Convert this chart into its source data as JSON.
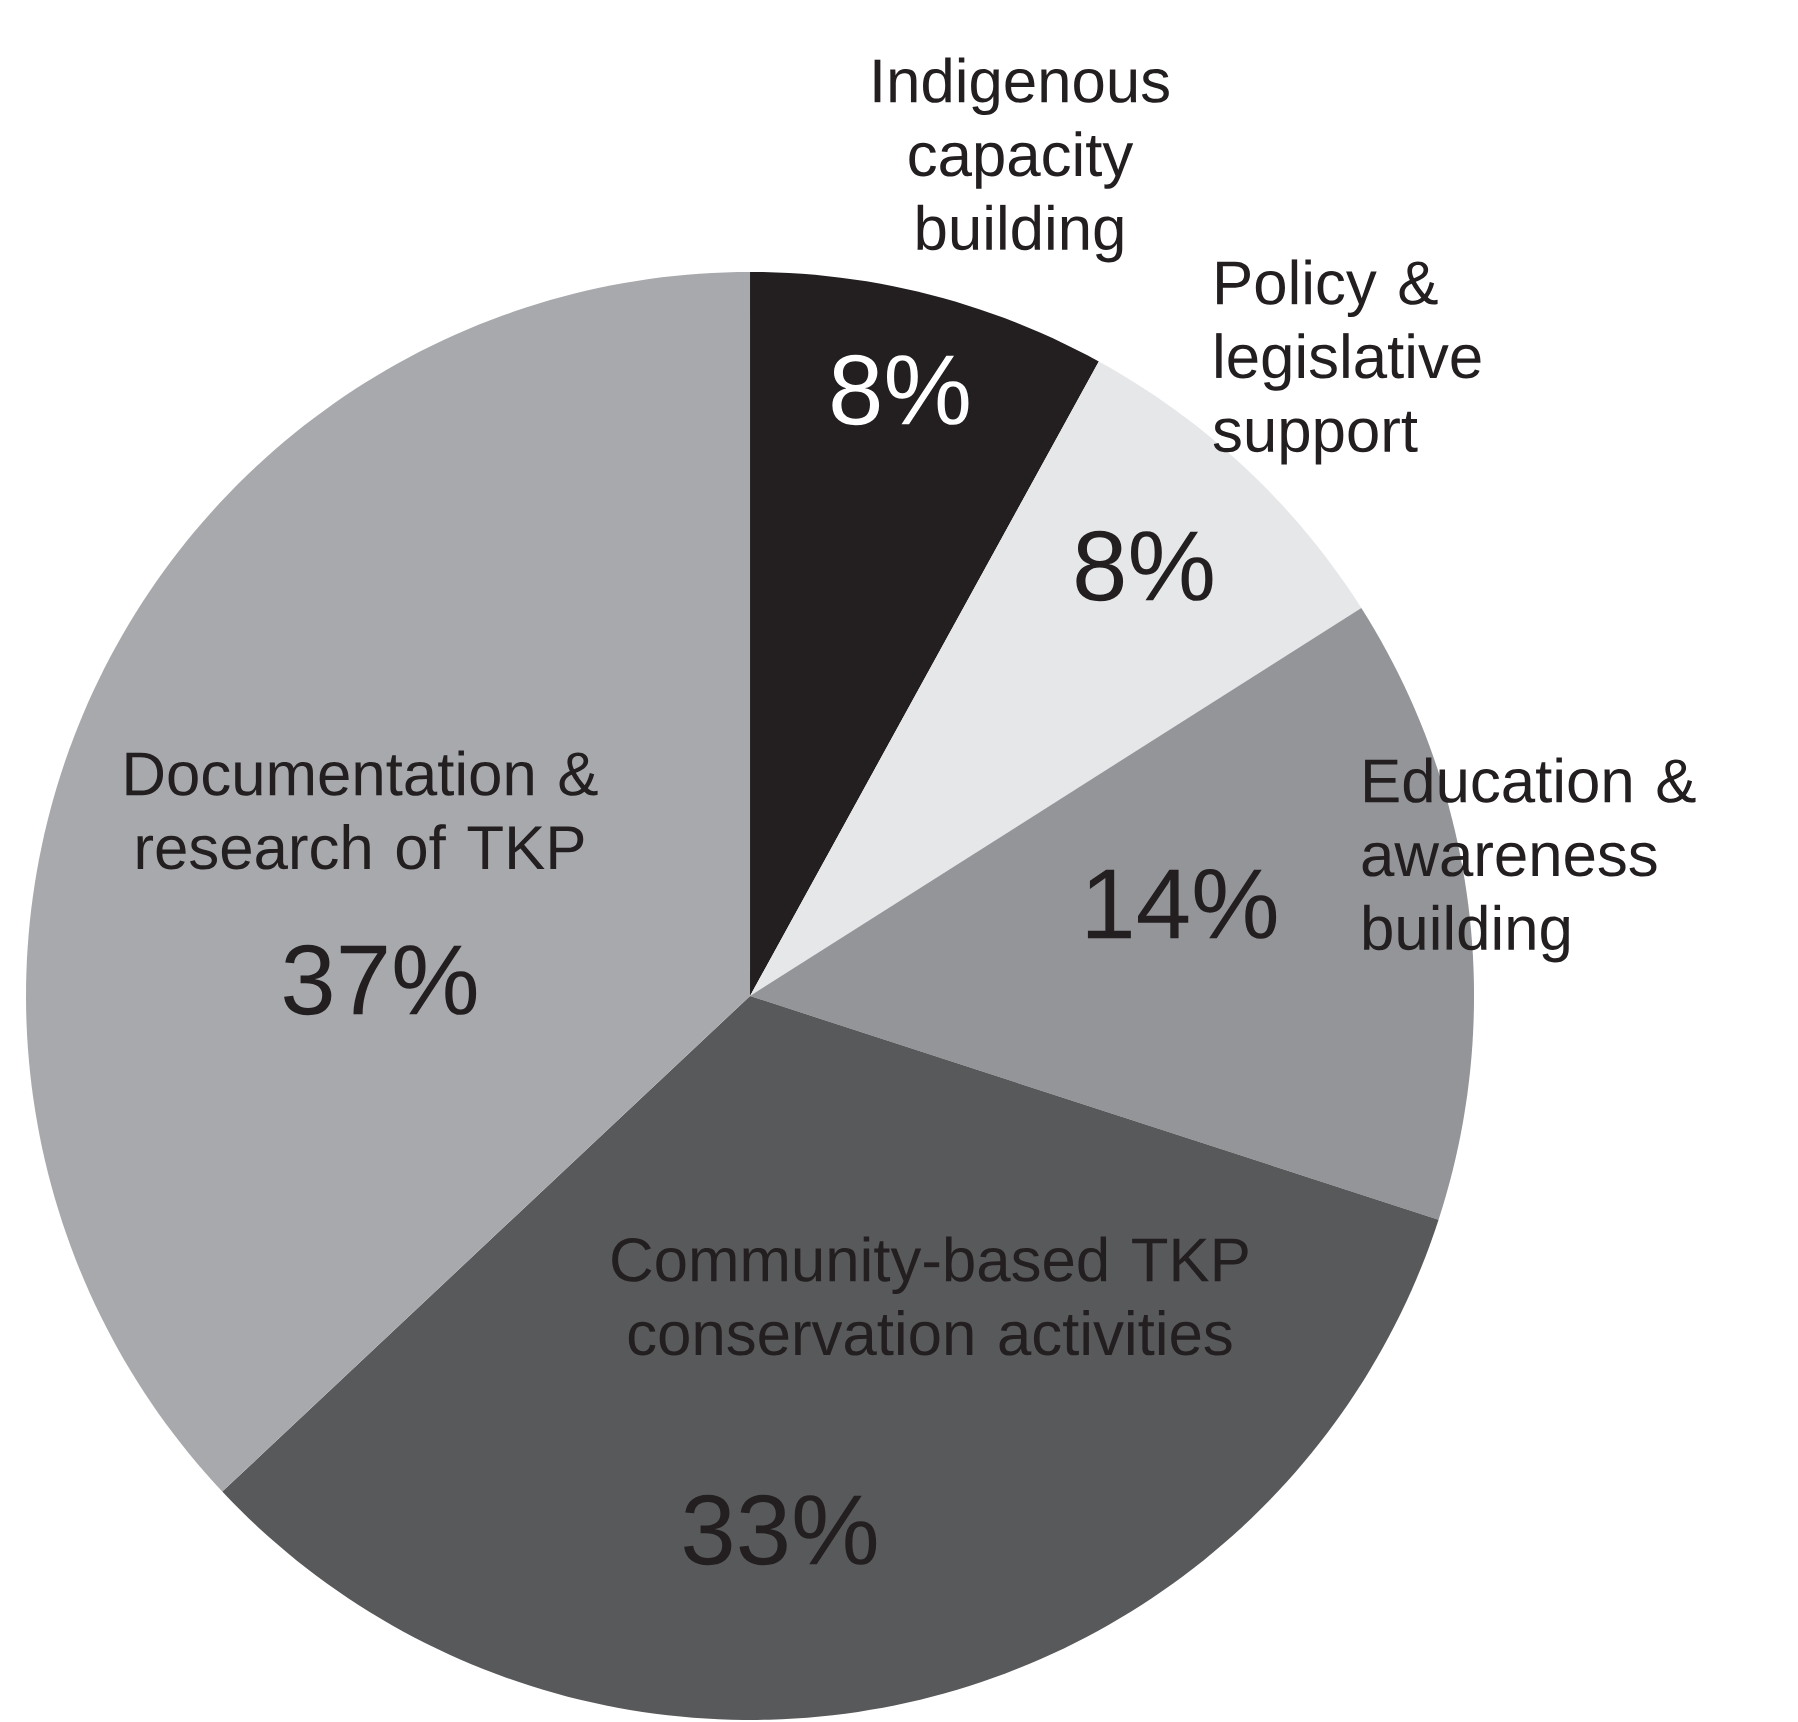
{
  "chart_data": {
    "type": "pie",
    "categories": [
      "Indigenous capacity building",
      "Policy & legislative support",
      "Education & awareness building",
      "Community-based TKP conservation activities",
      "Documentation & research of TKP"
    ],
    "values": [
      8,
      8,
      14,
      33,
      37
    ],
    "colors": [
      "#231f20",
      "#e6e7e8",
      "#939598",
      "#58595b",
      "#a7a9ac"
    ],
    "value_labels": [
      "8%",
      "8%",
      "14%",
      "33%",
      "37%"
    ]
  }
}
